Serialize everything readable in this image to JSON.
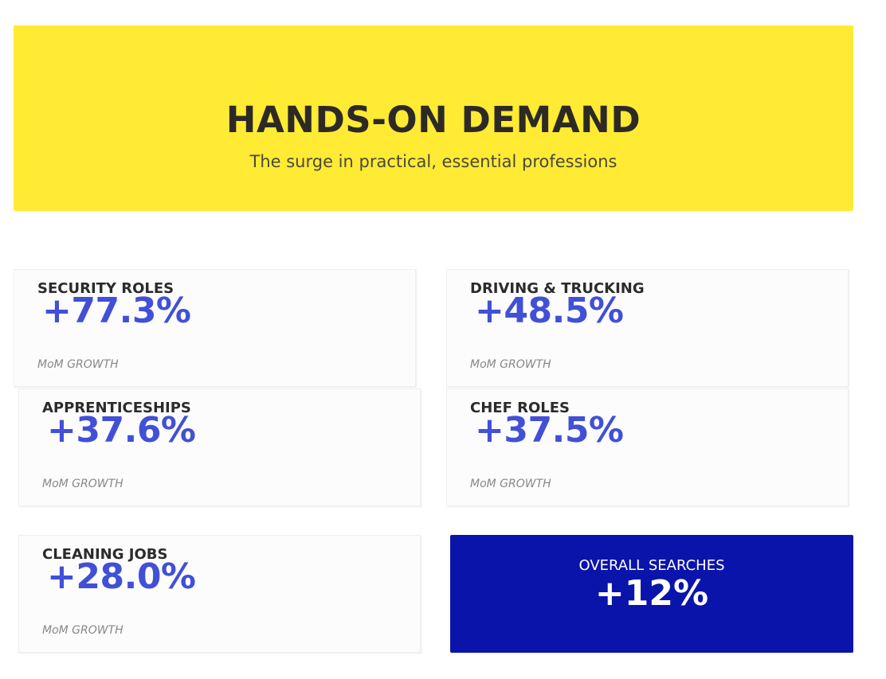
{
  "header": {
    "title": "HANDS-ON DEMAND",
    "subtitle": "The surge in practical, essential professions"
  },
  "cards": [
    {
      "label": "SECURITY ROLES",
      "value": "+77.3%",
      "caption": "MoM GROWTH"
    },
    {
      "label": "DRIVING & TRUCKING",
      "value": "+48.5%",
      "caption": "MoM GROWTH"
    },
    {
      "label": "APPRENTICESHIPS",
      "value": "+37.6%",
      "caption": "MoM GROWTH"
    },
    {
      "label": "CHEF ROLES",
      "value": "+37.5%",
      "caption": "MoM GROWTH"
    },
    {
      "label": "CLEANING JOBS",
      "value": "+28.0%",
      "caption": "MoM GROWTH"
    }
  ],
  "summary": {
    "label": "OVERALL SEARCHES",
    "value": "+12%"
  },
  "colors": {
    "banner": "#ffeb33",
    "accent": "#4150d6",
    "summary_background": "#0a14aa"
  }
}
